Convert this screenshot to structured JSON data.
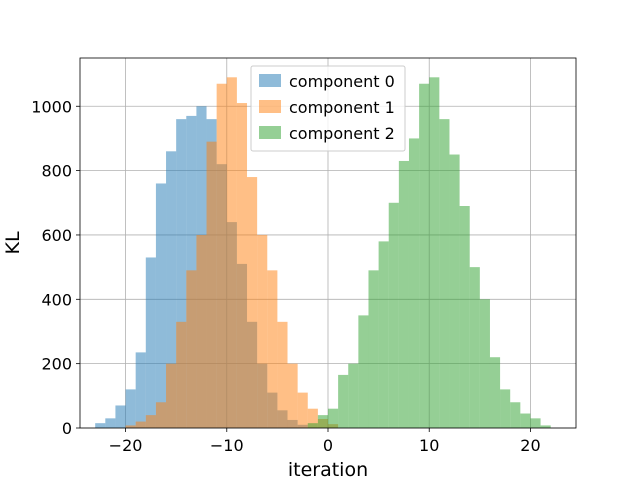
{
  "chart_data": {
    "type": "bar",
    "subtype": "overlaid-histogram",
    "title": "",
    "xlabel": "iteration",
    "ylabel": "KL",
    "xlim": [
      -24.5,
      24.5
    ],
    "ylim": [
      0,
      1150
    ],
    "x_ticks": [
      -20,
      -10,
      0,
      10,
      20
    ],
    "x_tick_labels": [
      "−20",
      "−10",
      "0",
      "10",
      "20"
    ],
    "y_ticks": [
      0,
      200,
      400,
      600,
      800,
      1000
    ],
    "y_tick_labels": [
      "0",
      "200",
      "400",
      "600",
      "800",
      "1000"
    ],
    "grid": true,
    "legend_position": "top-center",
    "series": [
      {
        "name": "component 0",
        "color": "#1f77b4",
        "alpha": 0.5,
        "bin_start": -23.0,
        "bin_width": 1.0,
        "values": [
          15,
          30,
          70,
          120,
          235,
          530,
          760,
          860,
          960,
          970,
          1000,
          960,
          820,
          640,
          510,
          330,
          200,
          110,
          55,
          25,
          10
        ]
      },
      {
        "name": "component 1",
        "color": "#ff7f0e",
        "alpha": 0.5,
        "bin_start": -20.0,
        "bin_width": 1.0,
        "values": [
          8,
          20,
          40,
          80,
          200,
          330,
          490,
          600,
          890,
          1070,
          1090,
          1010,
          780,
          600,
          490,
          330,
          200,
          110,
          60,
          28,
          12
        ]
      },
      {
        "name": "component 2",
        "color": "#2ca02c",
        "alpha": 0.5,
        "bin_start": -2.0,
        "bin_width": 1.0,
        "values": [
          15,
          40,
          60,
          165,
          200,
          350,
          490,
          580,
          700,
          830,
          900,
          1070,
          1090,
          960,
          850,
          690,
          500,
          400,
          220,
          120,
          80,
          45,
          30,
          8
        ]
      }
    ]
  }
}
